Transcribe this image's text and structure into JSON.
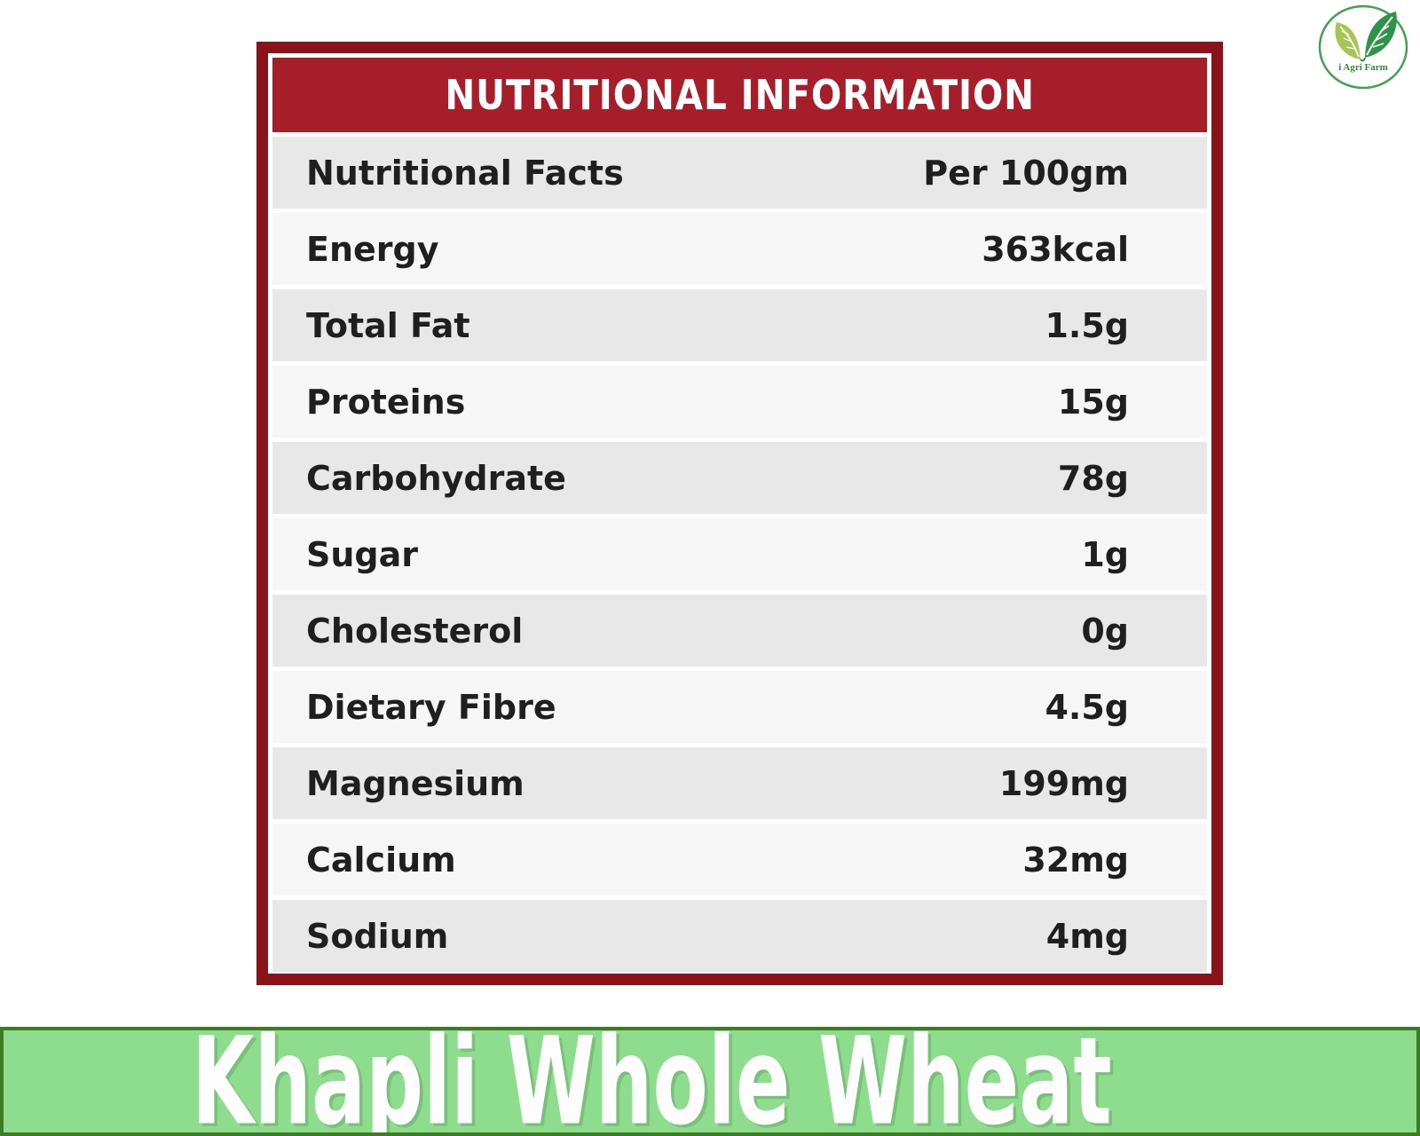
{
  "table": {
    "title": "NUTRITIONAL INFORMATION",
    "rows": [
      {
        "label": "Nutritional Facts",
        "value": "Per 100gm"
      },
      {
        "label": "Energy",
        "value": "363kcal"
      },
      {
        "label": "Total Fat",
        "value": "1.5g"
      },
      {
        "label": "Proteins",
        "value": "15g"
      },
      {
        "label": "Carbohydrate",
        "value": "78g"
      },
      {
        "label": "Sugar",
        "value": "1g"
      },
      {
        "label": "Cholesterol",
        "value": "0g"
      },
      {
        "label": "Dietary Fibre",
        "value": "4.5g"
      },
      {
        "label": "Magnesium",
        "value": "199mg"
      },
      {
        "label": "Calcium",
        "value": "32mg"
      },
      {
        "label": "Sodium",
        "value": "4mg"
      }
    ]
  },
  "banner": {
    "product_name": "Khapli Whole Wheat"
  },
  "logo": {
    "text": "i Agri Farm"
  },
  "colors": {
    "table_border": "#8a1219",
    "header_bg": "#a71e2b",
    "header_text": "#ffffff",
    "row_gray": "#e8e8e8",
    "row_light": "#f6f6f6",
    "row_text": "#1f1f1f",
    "banner_bg": "#8edc8d",
    "banner_border": "#3c7d23",
    "banner_text": "#fdfdfd",
    "logo_ring": "#44a04a",
    "logo_leaf_light": "#a5c653",
    "logo_leaf_dark": "#2e9447",
    "logo_text": "#2e8b3a"
  }
}
